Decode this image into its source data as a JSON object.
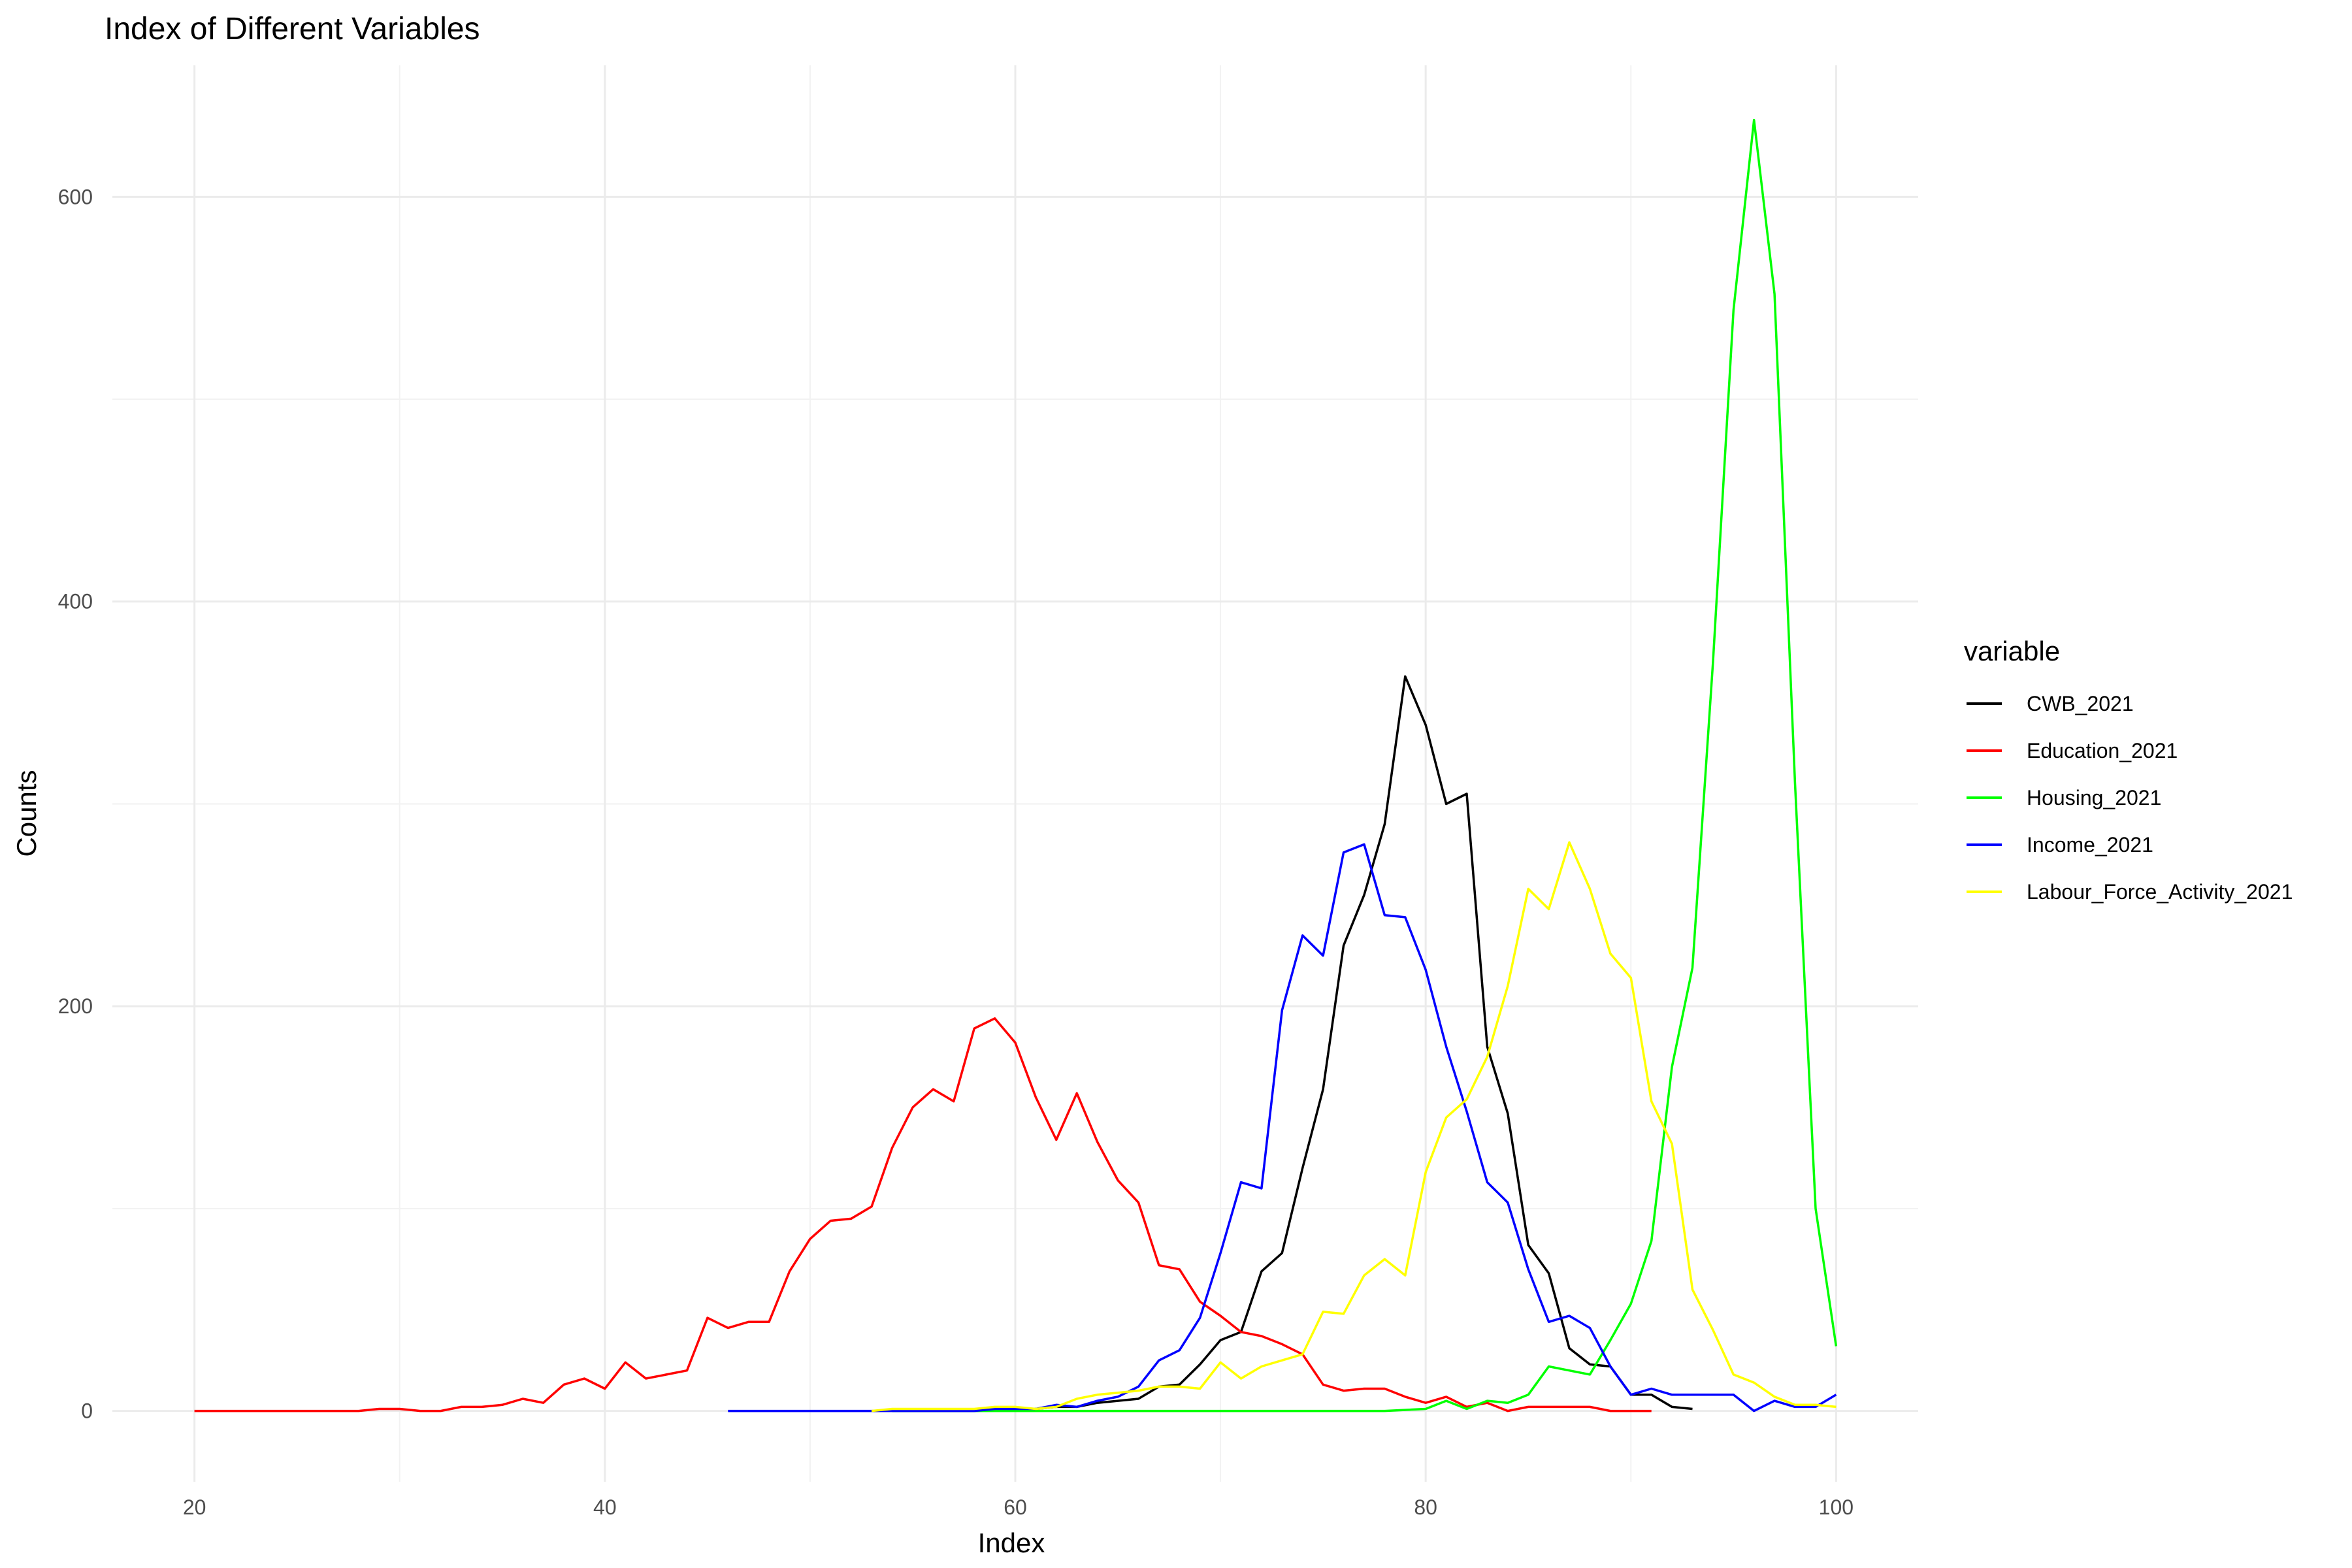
{
  "chart_data": {
    "type": "line",
    "title": "Index of Different Variables",
    "xlabel": "Index",
    "ylabel": "Counts",
    "xlim": [
      16,
      104
    ],
    "ylim": [
      -35,
      665
    ],
    "x_ticks": [
      20,
      40,
      60,
      80,
      100
    ],
    "x_tick_labels": [
      "20",
      "40",
      "60",
      "80",
      "100"
    ],
    "y_ticks": [
      0,
      200,
      400,
      600
    ],
    "y_tick_labels": [
      "0",
      "200",
      "400",
      "600"
    ],
    "grid": true,
    "legend": {
      "title": "variable",
      "position": "right"
    },
    "series": [
      {
        "name": "CWB_2021",
        "color": "#000000",
        "x": [
          54,
          55,
          56,
          57,
          58,
          59,
          60,
          61,
          62,
          63,
          64,
          65,
          66,
          67,
          68,
          69,
          70,
          71,
          72,
          73,
          74,
          75,
          76,
          77,
          78,
          79,
          80,
          81,
          82,
          83,
          84,
          85,
          86,
          87,
          88,
          89,
          90,
          91,
          92,
          93
        ],
        "y": [
          0,
          0,
          0,
          0,
          0,
          1,
          1,
          1,
          2,
          2,
          4,
          5,
          6,
          12,
          13,
          23,
          35,
          39,
          69,
          78,
          120,
          159,
          230,
          255,
          290,
          363,
          339,
          300,
          305,
          180,
          147,
          82,
          68,
          31,
          23,
          22,
          8,
          8,
          2,
          1
        ]
      },
      {
        "name": "Education_2021",
        "color": "#ff0000",
        "x": [
          20,
          21,
          22,
          23,
          24,
          25,
          26,
          27,
          28,
          29,
          30,
          31,
          32,
          33,
          34,
          35,
          36,
          37,
          38,
          39,
          40,
          41,
          42,
          43,
          44,
          45,
          46,
          47,
          48,
          49,
          50,
          51,
          52,
          53,
          54,
          55,
          56,
          57,
          58,
          59,
          60,
          61,
          62,
          63,
          64,
          65,
          66,
          67,
          68,
          69,
          70,
          71,
          72,
          73,
          74,
          75,
          76,
          77,
          78,
          79,
          80,
          81,
          82,
          83,
          84,
          85,
          86,
          87,
          88,
          89,
          90,
          91
        ],
        "y": [
          0,
          0,
          0,
          0,
          0,
          0,
          0,
          0,
          0,
          1,
          1,
          0,
          0,
          2,
          2,
          3,
          6,
          4,
          13,
          16,
          11,
          24,
          16,
          18,
          20,
          46,
          41,
          44,
          44,
          69,
          85,
          94,
          95,
          101,
          130,
          150,
          159,
          153,
          189,
          194,
          182,
          155,
          134,
          157,
          133,
          114,
          103,
          72,
          70,
          54,
          47,
          39,
          37,
          33,
          28,
          13,
          10,
          11,
          11,
          7,
          4,
          7,
          2,
          4,
          0,
          2,
          2,
          2,
          2,
          0,
          0,
          0
        ]
      },
      {
        "name": "Housing_2021",
        "color": "#00ff00",
        "x": [
          54,
          56,
          58,
          60,
          62,
          64,
          66,
          68,
          70,
          72,
          74,
          76,
          78,
          80,
          81,
          82,
          83,
          84,
          85,
          86,
          87,
          88,
          89,
          90,
          91,
          92,
          93,
          94,
          95,
          96,
          97,
          98,
          99,
          100
        ],
        "y": [
          0,
          0,
          0,
          0,
          0,
          0,
          0,
          0,
          0,
          0,
          0,
          0,
          0,
          1,
          5,
          1,
          5,
          4,
          8,
          22,
          20,
          18,
          35,
          53,
          84,
          170,
          219,
          370,
          544,
          638,
          552,
          310,
          100,
          32
        ]
      },
      {
        "name": "Income_2021",
        "color": "#0000ff",
        "x": [
          46,
          47,
          48,
          49,
          50,
          51,
          52,
          53,
          54,
          55,
          56,
          57,
          58,
          59,
          60,
          61,
          62,
          63,
          64,
          65,
          66,
          67,
          68,
          69,
          70,
          71,
          72,
          73,
          74,
          75,
          76,
          77,
          78,
          79,
          80,
          81,
          82,
          83,
          84,
          85,
          86,
          87,
          88,
          89,
          90,
          91,
          92,
          93,
          94,
          95,
          96,
          97,
          98,
          99,
          100
        ],
        "y": [
          0,
          0,
          0,
          0,
          0,
          0,
          0,
          0,
          0,
          0,
          0,
          0,
          0,
          1,
          1,
          1,
          3,
          2,
          5,
          7,
          12,
          25,
          30,
          46,
          78,
          113,
          110,
          198,
          235,
          225,
          276,
          280,
          245,
          244,
          218,
          180,
          148,
          113,
          103,
          70,
          44,
          47,
          41,
          22,
          8,
          11,
          8,
          8,
          8,
          8,
          0,
          5,
          2,
          2,
          8
        ]
      },
      {
        "name": "Labour_Force_Activity_2021",
        "color": "#ffff00",
        "x": [
          53,
          54,
          55,
          56,
          57,
          58,
          59,
          60,
          61,
          62,
          63,
          64,
          65,
          66,
          67,
          68,
          69,
          70,
          71,
          72,
          73,
          74,
          75,
          76,
          77,
          78,
          79,
          80,
          81,
          82,
          83,
          84,
          85,
          86,
          87,
          88,
          89,
          90,
          91,
          92,
          93,
          94,
          95,
          96,
          97,
          98,
          99,
          100
        ],
        "y": [
          0,
          1,
          1,
          1,
          1,
          1,
          2,
          2,
          1,
          2,
          6,
          8,
          9,
          10,
          12,
          12,
          11,
          24,
          16,
          22,
          25,
          28,
          49,
          48,
          67,
          75,
          67,
          118,
          145,
          154,
          175,
          210,
          258,
          248,
          281,
          258,
          226,
          214,
          153,
          132,
          60,
          40,
          18,
          14,
          7,
          3,
          3,
          2
        ]
      }
    ]
  }
}
